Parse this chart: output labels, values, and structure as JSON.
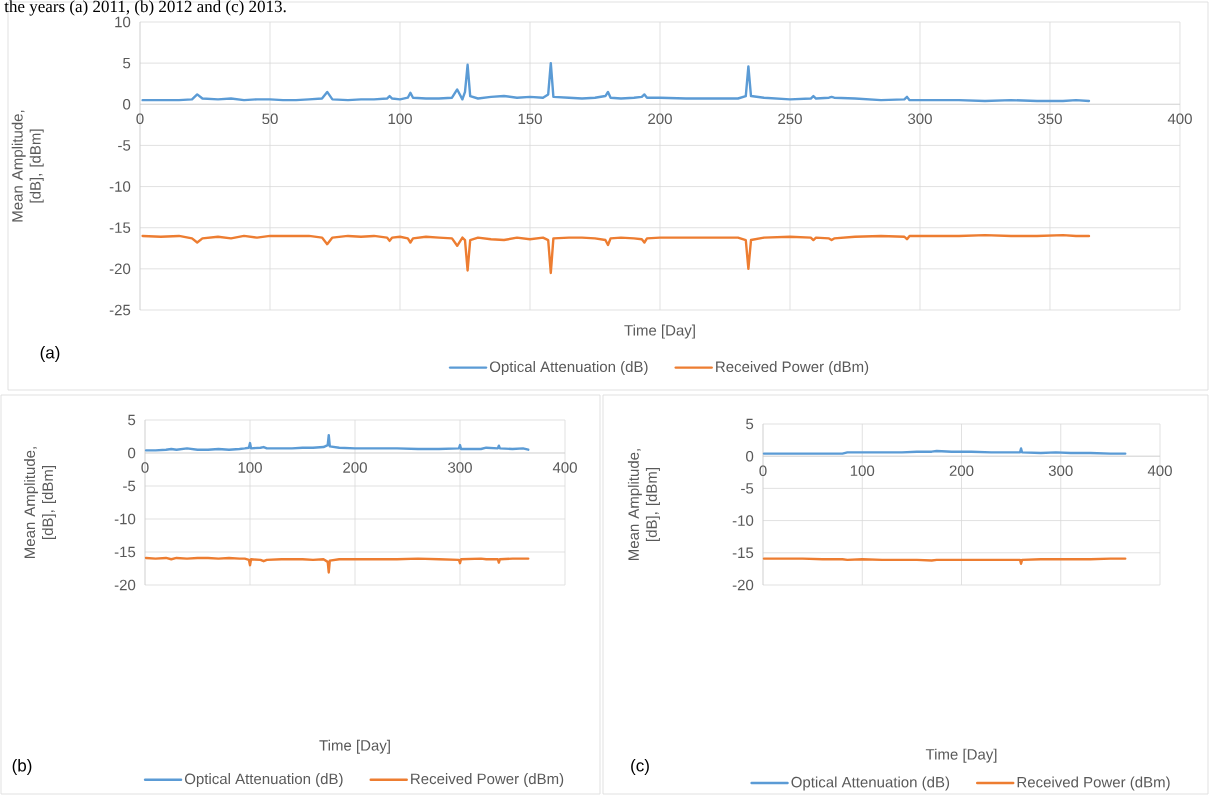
{
  "chart_data": [
    {
      "type": "line",
      "xlabel": "Time [Day]",
      "ylabel": "Mean Amplitude, [dB], [dBm]",
      "annotations": [
        "the years (a) 2011, (b) 2012 and (c) 2013.",
        "(a)"
      ],
      "x": [
        1,
        8,
        15,
        20,
        22,
        24,
        30,
        35,
        40,
        45,
        50,
        55,
        60,
        65,
        70,
        72,
        74,
        80,
        85,
        90,
        95,
        96,
        97,
        100,
        103,
        104,
        105,
        110,
        115,
        120,
        122,
        124,
        125,
        126,
        127,
        130,
        135,
        140,
        145,
        150,
        155,
        157,
        158,
        159,
        165,
        170,
        175,
        179,
        180,
        181,
        185,
        190,
        193,
        194,
        195,
        200,
        210,
        220,
        230,
        233,
        234,
        235,
        240,
        250,
        258,
        259,
        260,
        265,
        266,
        267,
        275,
        285,
        294,
        295,
        296,
        305,
        315,
        325,
        335,
        345,
        355,
        360,
        365
      ],
      "series": [
        {
          "name": "Optical Attenuation (dB)",
          "color": "#5b9bd5",
          "values": [
            0.5,
            0.5,
            0.5,
            0.6,
            1.2,
            0.7,
            0.6,
            0.7,
            0.5,
            0.6,
            0.6,
            0.5,
            0.5,
            0.6,
            0.7,
            1.5,
            0.6,
            0.5,
            0.6,
            0.6,
            0.7,
            1.0,
            0.7,
            0.6,
            0.8,
            1.4,
            0.8,
            0.7,
            0.7,
            0.8,
            1.8,
            0.6,
            1.5,
            4.8,
            1.0,
            0.7,
            0.9,
            1.0,
            0.8,
            0.9,
            0.8,
            1.2,
            5.0,
            0.9,
            0.8,
            0.7,
            0.8,
            1.0,
            1.5,
            0.8,
            0.7,
            0.8,
            0.9,
            1.2,
            0.8,
            0.8,
            0.7,
            0.7,
            0.7,
            1.0,
            4.6,
            1.0,
            0.8,
            0.6,
            0.7,
            1.0,
            0.7,
            0.8,
            0.9,
            0.8,
            0.7,
            0.5,
            0.6,
            0.9,
            0.5,
            0.5,
            0.5,
            0.4,
            0.5,
            0.4,
            0.4,
            0.5,
            0.4
          ]
        },
        {
          "name": "Received Power (dBm)",
          "color": "#ed7d31",
          "values": [
            -16.0,
            -16.1,
            -16.0,
            -16.3,
            -16.8,
            -16.3,
            -16.1,
            -16.3,
            -16.0,
            -16.2,
            -16.0,
            -16.0,
            -16.0,
            -16.0,
            -16.2,
            -17.0,
            -16.2,
            -16.0,
            -16.1,
            -16.0,
            -16.2,
            -16.6,
            -16.2,
            -16.1,
            -16.3,
            -16.8,
            -16.3,
            -16.1,
            -16.2,
            -16.3,
            -17.2,
            -16.2,
            -16.5,
            -20.2,
            -16.5,
            -16.2,
            -16.4,
            -16.5,
            -16.2,
            -16.4,
            -16.2,
            -16.5,
            -20.5,
            -16.3,
            -16.2,
            -16.2,
            -16.3,
            -16.5,
            -17.1,
            -16.3,
            -16.2,
            -16.3,
            -16.4,
            -16.8,
            -16.3,
            -16.2,
            -16.2,
            -16.2,
            -16.2,
            -16.5,
            -20.0,
            -16.5,
            -16.2,
            -16.1,
            -16.2,
            -16.5,
            -16.2,
            -16.3,
            -16.5,
            -16.3,
            -16.1,
            -16.0,
            -16.1,
            -16.4,
            -16.0,
            -16.0,
            -16.0,
            -15.9,
            -16.0,
            -16.0,
            -15.9,
            -16.0,
            -16.0
          ]
        }
      ],
      "xlim": [
        0,
        400
      ],
      "xticks": [
        0,
        50,
        100,
        150,
        200,
        250,
        300,
        350,
        400
      ],
      "ylim": [
        -25,
        10
      ],
      "yticks": [
        -25,
        -20,
        -15,
        -10,
        -5,
        0,
        5,
        10
      ],
      "grid": true,
      "legend": "bottom"
    },
    {
      "type": "line",
      "xlabel": "Time [Day]",
      "ylabel": "Mean Amplitude, [dB], [dBm]",
      "annotations": [
        "(b)"
      ],
      "x": [
        1,
        10,
        20,
        25,
        30,
        40,
        50,
        60,
        70,
        80,
        90,
        95,
        99,
        100,
        101,
        110,
        113,
        116,
        130,
        140,
        150,
        160,
        170,
        174,
        175,
        176,
        185,
        200,
        220,
        240,
        260,
        280,
        299,
        300,
        301,
        320,
        325,
        336,
        337,
        338,
        350,
        360,
        365
      ],
      "series": [
        {
          "name": "Optical Attenuation (dB)",
          "color": "#5b9bd5",
          "values": [
            0.4,
            0.4,
            0.5,
            0.6,
            0.5,
            0.7,
            0.5,
            0.5,
            0.6,
            0.5,
            0.6,
            0.7,
            0.8,
            1.5,
            0.7,
            0.8,
            0.9,
            0.7,
            0.7,
            0.7,
            0.8,
            0.8,
            0.9,
            1.2,
            2.7,
            1.0,
            0.8,
            0.7,
            0.7,
            0.7,
            0.6,
            0.6,
            0.7,
            1.2,
            0.6,
            0.6,
            0.8,
            0.7,
            1.1,
            0.7,
            0.6,
            0.7,
            0.5
          ]
        },
        {
          "name": "Received Power (dBm)",
          "color": "#ed7d31",
          "values": [
            -15.9,
            -16.0,
            -15.9,
            -16.1,
            -15.9,
            -16.0,
            -15.9,
            -15.9,
            -16.0,
            -15.9,
            -16.0,
            -16.0,
            -16.2,
            -17.0,
            -16.1,
            -16.2,
            -16.4,
            -16.2,
            -16.1,
            -16.1,
            -16.1,
            -16.2,
            -16.1,
            -16.5,
            -18.1,
            -16.3,
            -16.1,
            -16.1,
            -16.1,
            -16.1,
            -16.0,
            -16.1,
            -16.2,
            -16.7,
            -16.1,
            -16.0,
            -16.1,
            -16.1,
            -16.6,
            -16.1,
            -16.0,
            -16.0,
            -16.0
          ]
        }
      ],
      "xlim": [
        0,
        400
      ],
      "xticks": [
        0,
        100,
        200,
        300,
        400
      ],
      "ylim": [
        -20,
        5
      ],
      "yticks": [
        -20,
        -15,
        -10,
        -5,
        0,
        5
      ],
      "grid": true,
      "legend": "bottom"
    },
    {
      "type": "line",
      "xlabel": "Time [Day]",
      "ylabel": "Mean Amplitude, [dB], [dBm]",
      "annotations": [
        "(c)"
      ],
      "x": [
        1,
        20,
        40,
        60,
        80,
        85,
        100,
        120,
        140,
        155,
        170,
        175,
        190,
        210,
        230,
        250,
        259,
        260,
        261,
        280,
        295,
        310,
        330,
        350,
        365
      ],
      "series": [
        {
          "name": "Optical Attenuation (dB)",
          "color": "#5b9bd5",
          "values": [
            0.4,
            0.4,
            0.4,
            0.4,
            0.4,
            0.6,
            0.6,
            0.6,
            0.6,
            0.7,
            0.7,
            0.8,
            0.7,
            0.7,
            0.6,
            0.6,
            0.6,
            1.2,
            0.6,
            0.5,
            0.6,
            0.5,
            0.5,
            0.4,
            0.4
          ]
        },
        {
          "name": "Received Power (dBm)",
          "color": "#ed7d31",
          "values": [
            -15.9,
            -15.9,
            -15.9,
            -16.0,
            -16.0,
            -16.1,
            -16.0,
            -16.1,
            -16.1,
            -16.1,
            -16.2,
            -16.1,
            -16.1,
            -16.1,
            -16.1,
            -16.1,
            -16.1,
            -16.7,
            -16.1,
            -16.0,
            -16.0,
            -16.0,
            -16.0,
            -15.9,
            -15.9
          ]
        }
      ],
      "xlim": [
        0,
        400
      ],
      "xticks": [
        0,
        100,
        200,
        300,
        400
      ],
      "ylim": [
        -20,
        5
      ],
      "yticks": [
        -20,
        -15,
        -10,
        -5,
        0,
        5
      ],
      "grid": true,
      "legend": "bottom"
    }
  ]
}
